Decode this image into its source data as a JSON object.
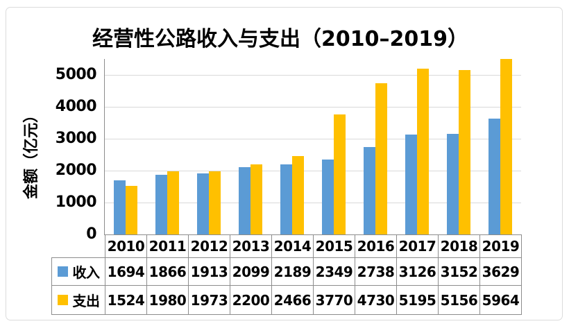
{
  "title": "经营性公路收入与支出（2010–2019）",
  "y_axis": {
    "label": "金额（亿元）"
  },
  "chart_data": {
    "type": "bar",
    "title": "经营性公路收入与支出（2010–2019）",
    "categories": [
      "2010",
      "2011",
      "2012",
      "2013",
      "2014",
      "2015",
      "2016",
      "2017",
      "2018",
      "2019"
    ],
    "series": [
      {
        "name": "收入",
        "color": "#5B9BD5",
        "values": [
          1694,
          1866,
          1913,
          2099,
          2189,
          2349,
          2738,
          3126,
          3152,
          3629
        ]
      },
      {
        "name": "支出",
        "color": "#FFC000",
        "values": [
          1524,
          1980,
          1973,
          2200,
          2466,
          3770,
          4730,
          5195,
          5156,
          5964
        ]
      }
    ],
    "xlabel": "",
    "ylabel": "金额（亿元）",
    "ylim": [
      0,
      5500
    ],
    "y_tick_interval": 1000,
    "y_tick_labels": [
      "0",
      "1000",
      "2000",
      "3000",
      "4000",
      "5000"
    ],
    "grid": true,
    "gridline_color": "#D9D9D9",
    "axis_color": "#8C8C8C",
    "legend_position": "table-left",
    "data_table_shown": true
  }
}
